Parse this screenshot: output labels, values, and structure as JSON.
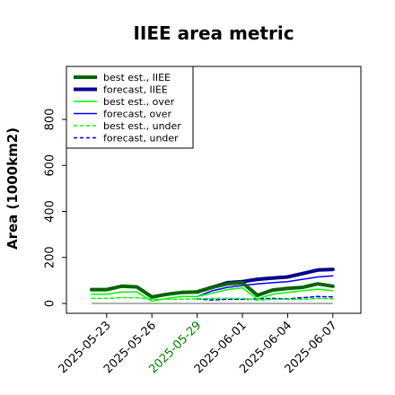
{
  "chart_data": {
    "type": "line",
    "title": "IIEE area metric",
    "ylabel": "Area (1000km2)",
    "xlabel": "",
    "ylim": [
      0,
      800
    ],
    "yticks": [
      0,
      200,
      400,
      600,
      800
    ],
    "xticks": [
      "2025-05-23",
      "2025-05-26",
      "2025-05-29",
      "2025-06-01",
      "2025-06-04",
      "2025-06-07"
    ],
    "xtick_colors": [
      "#000000",
      "#000000",
      "#008000",
      "#000000",
      "#000000",
      "#000000"
    ],
    "x": [
      "2025-05-22",
      "2025-05-23",
      "2025-05-24",
      "2025-05-25",
      "2025-05-26",
      "2025-05-27",
      "2025-05-28",
      "2025-05-29",
      "2025-05-30",
      "2025-05-31",
      "2025-06-01",
      "2025-06-02",
      "2025-06-03",
      "2025-06-04",
      "2025-06-05",
      "2025-06-06",
      "2025-06-07"
    ],
    "legend_position": "top-left",
    "grid": false,
    "series": [
      {
        "name": "best est., IIEE",
        "color": "#006400",
        "style": "solid",
        "width": 4,
        "values": [
          60,
          60,
          75,
          72,
          28,
          40,
          48,
          50,
          70,
          85,
          90,
          35,
          58,
          65,
          70,
          85,
          75
        ]
      },
      {
        "name": "forecast, IIEE",
        "color": "#00008b",
        "style": "solid",
        "width": 4,
        "values": [
          null,
          null,
          null,
          null,
          null,
          null,
          null,
          50,
          70,
          90,
          95,
          105,
          110,
          115,
          130,
          145,
          148
        ]
      },
      {
        "name": "best est., over",
        "color": "#00ff00",
        "style": "solid",
        "width": 1.5,
        "values": [
          40,
          40,
          50,
          50,
          10,
          22,
          30,
          30,
          45,
          60,
          68,
          20,
          40,
          48,
          55,
          62,
          55
        ]
      },
      {
        "name": "forecast, over",
        "color": "#0000ff",
        "style": "solid",
        "width": 1.5,
        "values": [
          null,
          null,
          null,
          null,
          null,
          null,
          null,
          30,
          55,
          70,
          78,
          85,
          90,
          95,
          105,
          115,
          120
        ]
      },
      {
        "name": "best est., under",
        "color": "#00ff00",
        "style": "dashed",
        "width": 1.5,
        "values": [
          22,
          22,
          25,
          25,
          18,
          18,
          18,
          20,
          22,
          22,
          22,
          15,
          18,
          18,
          18,
          22,
          20
        ]
      },
      {
        "name": "forecast, under",
        "color": "#0000ff",
        "style": "dashed",
        "width": 1.5,
        "values": [
          null,
          null,
          null,
          null,
          null,
          null,
          null,
          20,
          15,
          18,
          18,
          20,
          22,
          20,
          25,
          30,
          28
        ]
      }
    ],
    "baseline": {
      "value": 0,
      "color": "#808080"
    }
  }
}
